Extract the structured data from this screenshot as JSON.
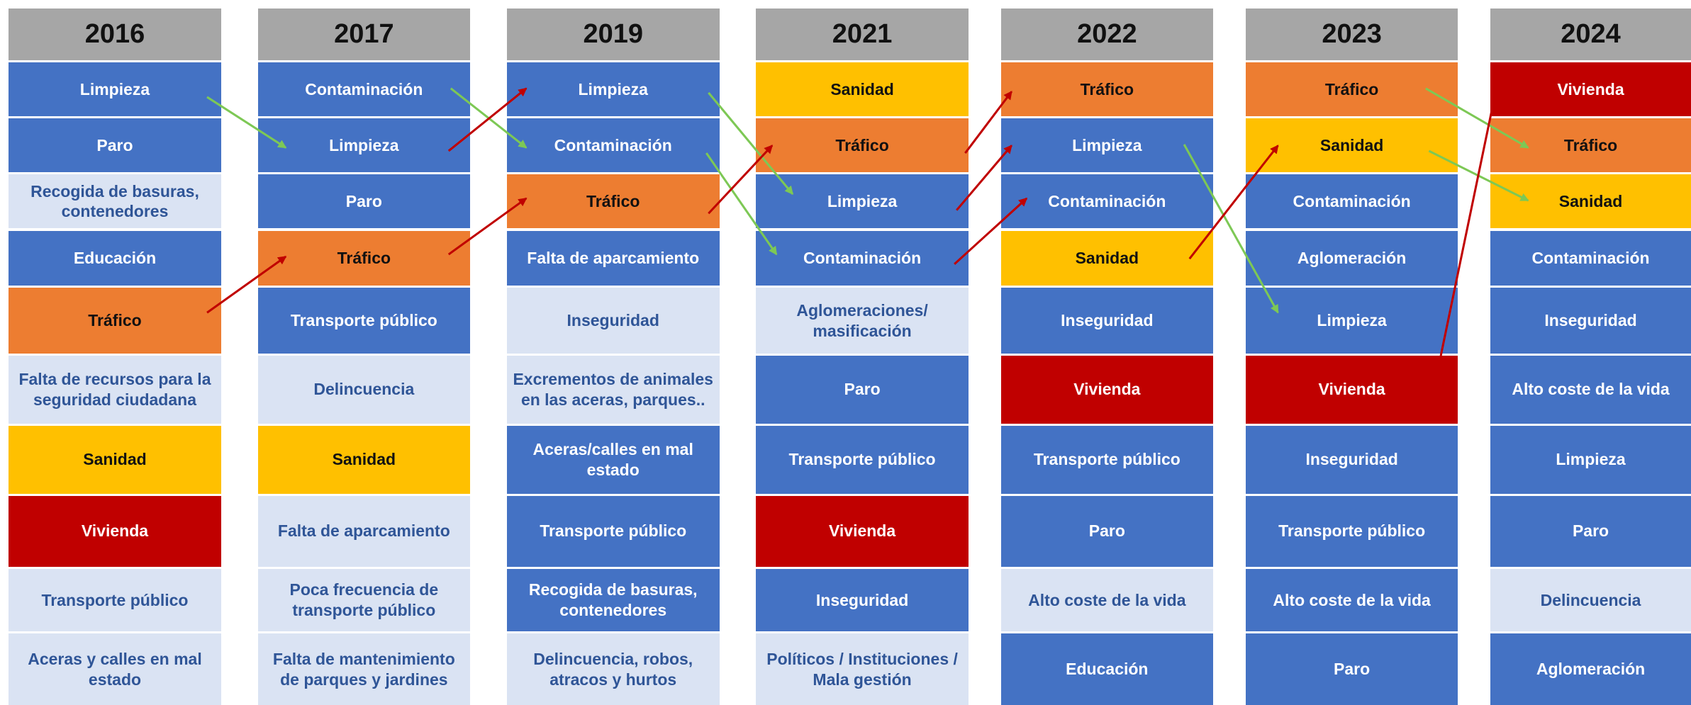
{
  "columns": [
    {
      "year": "2016",
      "cells": [
        {
          "text": "Limpieza",
          "color": "#4472c4"
        },
        {
          "text": "Paro",
          "color": "#4472c4"
        },
        {
          "text": "Recogida de basuras, contenedores",
          "color": "#dae3f3"
        },
        {
          "text": "Educación",
          "color": "#4472c4"
        },
        {
          "text": "Tráfico",
          "color": "#ed7d31"
        },
        {
          "text": "Falta de recursos para la seguridad ciudadana",
          "color": "#dae3f3"
        },
        {
          "text": "Sanidad",
          "color": "#ffc000"
        },
        {
          "text": "Vivienda",
          "color": "#c00000"
        },
        {
          "text": "Transporte público",
          "color": "#dae3f3"
        },
        {
          "text": "Aceras y calles en mal estado",
          "color": "#dae3f3"
        }
      ]
    },
    {
      "year": "2017",
      "cells": [
        {
          "text": "Contaminación",
          "color": "#4472c4"
        },
        {
          "text": "Limpieza",
          "color": "#4472c4"
        },
        {
          "text": "Paro",
          "color": "#4472c4"
        },
        {
          "text": "Tráfico",
          "color": "#ed7d31"
        },
        {
          "text": "Transporte público",
          "color": "#4472c4"
        },
        {
          "text": "Delincuencia",
          "color": "#dae3f3"
        },
        {
          "text": "Sanidad",
          "color": "#ffc000"
        },
        {
          "text": "Falta de aparcamiento",
          "color": "#dae3f3"
        },
        {
          "text": "Poca frecuencia de transporte público",
          "color": "#dae3f3"
        },
        {
          "text": "Falta de mantenimiento de parques y jardines",
          "color": "#dae3f3"
        }
      ]
    },
    {
      "year": "2019",
      "cells": [
        {
          "text": "Limpieza",
          "color": "#4472c4"
        },
        {
          "text": "Contaminación",
          "color": "#4472c4"
        },
        {
          "text": "Tráfico",
          "color": "#ed7d31"
        },
        {
          "text": "Falta de aparcamiento",
          "color": "#4472c4"
        },
        {
          "text": "Inseguridad",
          "color": "#dae3f3"
        },
        {
          "text": "Excrementos de animales en las aceras, parques..",
          "color": "#dae3f3"
        },
        {
          "text": "Aceras/calles en mal estado",
          "color": "#4472c4"
        },
        {
          "text": "Transporte público",
          "color": "#4472c4"
        },
        {
          "text": "Recogida de basuras, contenedores",
          "color": "#4472c4"
        },
        {
          "text": "Delincuencia, robos, atracos y hurtos",
          "color": "#dae3f3"
        }
      ]
    },
    {
      "year": "2021",
      "cells": [
        {
          "text": "Sanidad",
          "color": "#ffc000"
        },
        {
          "text": "Tráfico",
          "color": "#ed7d31"
        },
        {
          "text": "Limpieza",
          "color": "#4472c4"
        },
        {
          "text": "Contaminación",
          "color": "#4472c4"
        },
        {
          "text": "Aglomeraciones/ masificación",
          "color": "#dae3f3"
        },
        {
          "text": "Paro",
          "color": "#4472c4"
        },
        {
          "text": "Transporte público",
          "color": "#4472c4"
        },
        {
          "text": "Vivienda",
          "color": "#c00000"
        },
        {
          "text": "Inseguridad",
          "color": "#4472c4"
        },
        {
          "text": "Políticos / Instituciones / Mala gestión",
          "color": "#dae3f3"
        }
      ]
    },
    {
      "year": "2022",
      "cells": [
        {
          "text": "Tráfico",
          "color": "#ed7d31"
        },
        {
          "text": "Limpieza",
          "color": "#4472c4"
        },
        {
          "text": "Contaminación",
          "color": "#4472c4"
        },
        {
          "text": "Sanidad",
          "color": "#ffc000"
        },
        {
          "text": "Inseguridad",
          "color": "#4472c4"
        },
        {
          "text": "Vivienda",
          "color": "#c00000"
        },
        {
          "text": "Transporte público",
          "color": "#4472c4"
        },
        {
          "text": "Paro",
          "color": "#4472c4"
        },
        {
          "text": "Alto coste de la vida",
          "color": "#dae3f3"
        },
        {
          "text": "Educación",
          "color": "#4472c4"
        }
      ]
    },
    {
      "year": "2023",
      "cells": [
        {
          "text": "Tráfico",
          "color": "#ed7d31"
        },
        {
          "text": "Sanidad",
          "color": "#ffc000"
        },
        {
          "text": "Contaminación",
          "color": "#4472c4"
        },
        {
          "text": "Aglomeración",
          "color": "#4472c4"
        },
        {
          "text": "Limpieza",
          "color": "#4472c4"
        },
        {
          "text": "Vivienda",
          "color": "#c00000"
        },
        {
          "text": "Inseguridad",
          "color": "#4472c4"
        },
        {
          "text": "Transporte público",
          "color": "#4472c4"
        },
        {
          "text": "Alto coste de la vida",
          "color": "#4472c4"
        },
        {
          "text": "Paro",
          "color": "#4472c4"
        }
      ]
    },
    {
      "year": "2024",
      "cells": [
        {
          "text": "Vivienda",
          "color": "#c00000"
        },
        {
          "text": "Tráfico",
          "color": "#ed7d31"
        },
        {
          "text": "Sanidad",
          "color": "#ffc000"
        },
        {
          "text": "Contaminación",
          "color": "#4472c4"
        },
        {
          "text": "Inseguridad",
          "color": "#4472c4"
        },
        {
          "text": "Alto coste de la vida",
          "color": "#4472c4"
        },
        {
          "text": "Limpieza",
          "color": "#4472c4"
        },
        {
          "text": "Paro",
          "color": "#4472c4"
        },
        {
          "text": "Delincuencia",
          "color": "#dae3f3"
        },
        {
          "text": "Aglomeración",
          "color": "#4472c4"
        }
      ]
    }
  ]
}
